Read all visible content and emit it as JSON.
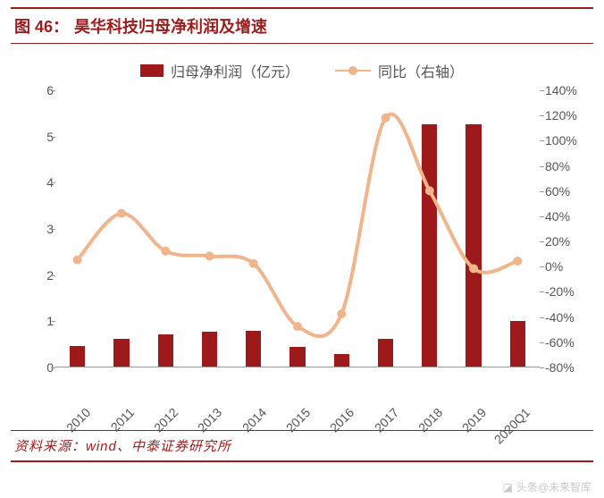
{
  "figure_label": "图 46：",
  "title": "昊华科技归母净利润及增速",
  "legend": {
    "bar": "归母净利润（亿元）",
    "line": "同比（右轴）"
  },
  "source_label": "资料来源：",
  "source_text": "wind、中泰证券研究所",
  "watermark": "头条@未来智库",
  "chart": {
    "type": "combo-bar-line",
    "categories": [
      "2010",
      "2011",
      "2012",
      "2013",
      "2014",
      "2015",
      "2016",
      "2017",
      "2018",
      "2019",
      "2020Q1"
    ],
    "bar_series": {
      "values": [
        0.45,
        0.6,
        0.7,
        0.75,
        0.78,
        0.42,
        0.28,
        0.6,
        5.25,
        5.25,
        0.98
      ],
      "color": "#9e1a1a",
      "bar_width_ratio": 0.35
    },
    "line_series": {
      "values": [
        5,
        42,
        12,
        8,
        2,
        -48,
        -38,
        118,
        60,
        -2,
        4
      ],
      "color": "#f0b58c",
      "marker_fill": "#f0b58c",
      "line_width": 4,
      "marker_radius": 5
    },
    "y_left": {
      "min": 0,
      "max": 6,
      "step": 1
    },
    "y_right": {
      "min": -80,
      "max": 140,
      "step": 20,
      "suffix": "%"
    },
    "label_fontsize": 14,
    "axis_color": "#999999",
    "text_color": "#555555",
    "background": "#ffffff"
  }
}
